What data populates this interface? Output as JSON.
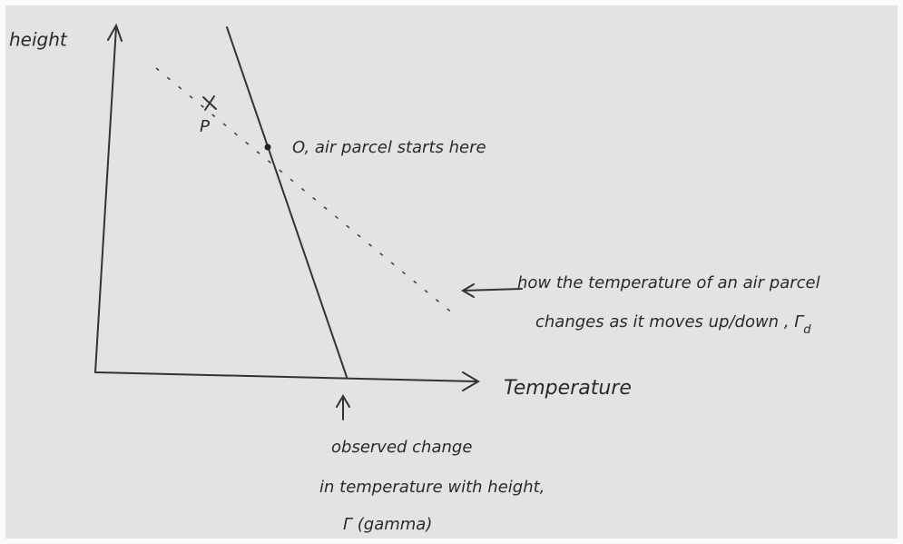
{
  "axes": {
    "y_label": "height",
    "x_label": "Temperature"
  },
  "points": {
    "p_label": "P",
    "o_label": "O, air parcel starts here"
  },
  "parcel_note": {
    "lines": [
      "how the temperature of an air parcel",
      "changes as it moves up/down , Γ"
    ],
    "subscript": "d"
  },
  "observed_note": {
    "lines": [
      "observed change",
      "in temperature with height,",
      "Γ  (gamma)"
    ]
  }
}
